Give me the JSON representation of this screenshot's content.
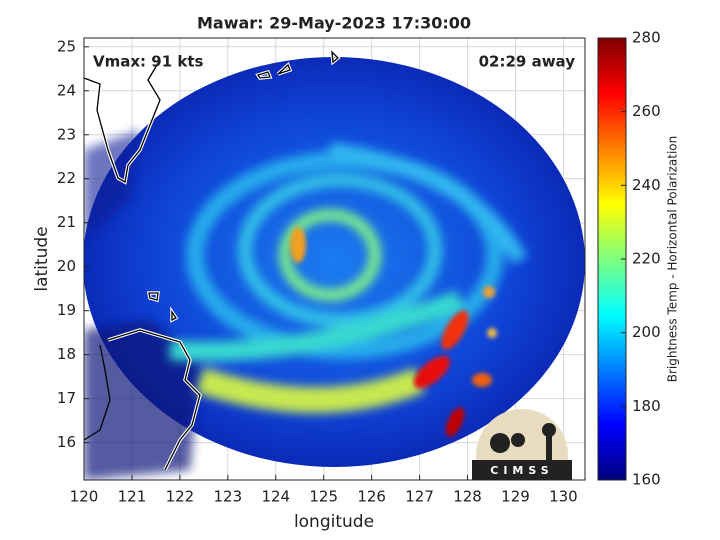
{
  "chart_data": {
    "type": "image",
    "title": "Mawar: 29-May-2023 17:30:00",
    "x_label": "longitude",
    "y_label": "latitude",
    "annotations": [
      "Vmax: 91 kts",
      "02:29 away"
    ],
    "logo_text": "CIMSS",
    "xlim": [
      120,
      130.45
    ],
    "xticks": [
      120,
      121,
      122,
      123,
      124,
      125,
      126,
      127,
      128,
      129,
      130
    ],
    "ylim": [
      15.15,
      25.2
    ],
    "yticks": [
      16,
      17,
      18,
      19,
      20,
      21,
      22,
      23,
      24,
      25
    ],
    "grid": true,
    "colorbar": {
      "label": "Brightness Temp - Horizontal Polarization",
      "colormap": "jet",
      "clim": [
        160,
        280
      ],
      "ticks": [
        160,
        180,
        200,
        220,
        240,
        260,
        280
      ]
    }
  }
}
